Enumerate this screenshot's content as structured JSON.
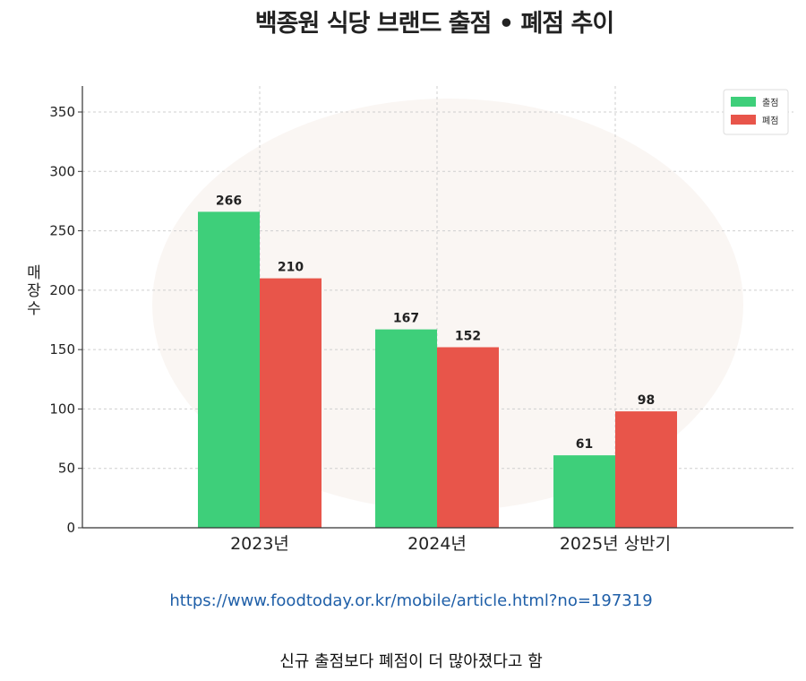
{
  "chart_data": {
    "type": "bar",
    "title": "백종원 식당 브랜드 출점 • 폐점 추이",
    "ylabel": "매장수",
    "xlabel": "",
    "ylim": [
      0,
      375
    ],
    "yticks": [
      0,
      50,
      100,
      150,
      200,
      250,
      300,
      350
    ],
    "categories": [
      "2023년",
      "2024년",
      "2025년 상반기"
    ],
    "series": [
      {
        "name": "출점",
        "color": "#3ecf7a",
        "values": [
          266,
          167,
          61
        ]
      },
      {
        "name": "폐점",
        "color": "#e8554a",
        "values": [
          210,
          152,
          98
        ]
      }
    ],
    "grid": true,
    "legend_position": "top-right"
  },
  "source_url": "https://www.foodtoday.or.kr/mobile/article.html?no=197319",
  "caption": "신규 출점보다 폐점이 더 많아졌다고 함"
}
